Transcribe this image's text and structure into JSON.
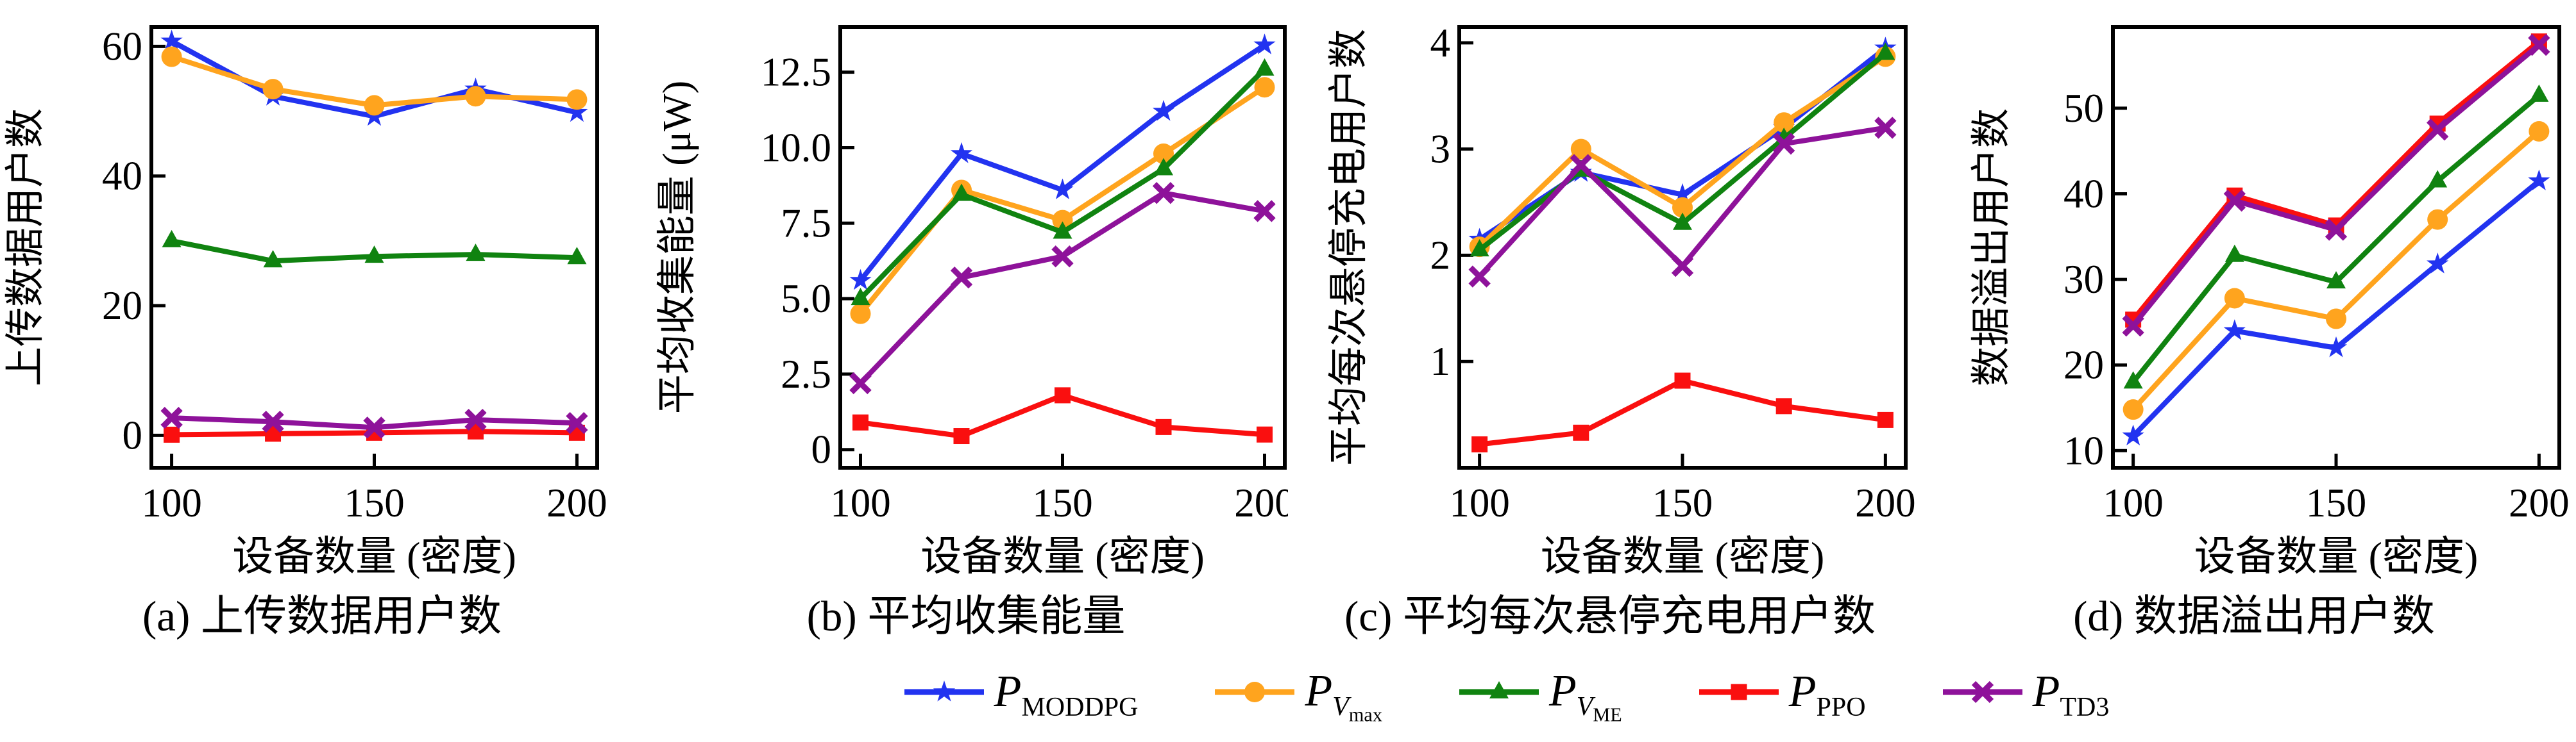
{
  "figure": {
    "x_label": "设备数量 (密度)",
    "x_ticks": [
      {
        "v": 100,
        "label": "100"
      },
      {
        "v": 150,
        "label": "150"
      },
      {
        "v": 200,
        "label": "200"
      }
    ],
    "x_range": [
      95,
      205
    ],
    "background": "#ffffff",
    "axis_color": "#000000",
    "legend": [
      {
        "name": "P_MODDPG",
        "color": "#2233f0",
        "marker": "star",
        "p": "P",
        "sub": "MODDPG"
      },
      {
        "name": "P_Vmax",
        "color": "#ffa41e",
        "marker": "circle",
        "p": "P",
        "sub": "V",
        "subsub": "max"
      },
      {
        "name": "P_VME",
        "color": "#108310",
        "marker": "triangle",
        "p": "P",
        "sub": "V",
        "subsub": "ME"
      },
      {
        "name": "P_PPO",
        "color": "#fa0f0f",
        "marker": "square",
        "p": "P",
        "sub": "PPO"
      },
      {
        "name": "P_TD3",
        "color": "#8e129a",
        "marker": "x",
        "p": "P",
        "sub": "TD3"
      }
    ]
  },
  "chart_data": [
    {
      "id": "a",
      "type": "line",
      "caption": "(a) 上传数据用户数",
      "ylabel": "上传数据用户数",
      "xlabel": "设备数量 (密度)",
      "x": [
        100,
        125,
        150,
        175,
        200
      ],
      "ylim": [
        -5,
        63
      ],
      "y_ticks": [
        {
          "v": 0,
          "label": "0"
        },
        {
          "v": 20,
          "label": "20"
        },
        {
          "v": 40,
          "label": "40"
        },
        {
          "v": 60,
          "label": "60"
        }
      ],
      "series": [
        {
          "name": "P_MODDPG",
          "values": [
            60.8,
            52.3,
            49.2,
            53.4,
            49.8
          ]
        },
        {
          "name": "P_Vmax",
          "values": [
            58.4,
            53.4,
            50.9,
            52.3,
            51.8
          ]
        },
        {
          "name": "P_VME",
          "values": [
            30.0,
            26.9,
            27.6,
            27.9,
            27.4
          ]
        },
        {
          "name": "P_PPO",
          "values": [
            0.1,
            0.25,
            0.4,
            0.6,
            0.4
          ]
        },
        {
          "name": "P_TD3",
          "values": [
            2.7,
            2.1,
            1.2,
            2.4,
            1.9
          ]
        }
      ]
    },
    {
      "id": "b",
      "type": "line",
      "caption": "(b) 平均收集能量",
      "ylabel": "平均收集能量 (μW)",
      "xlabel": "设备数量 (密度)",
      "x": [
        100,
        125,
        150,
        175,
        200
      ],
      "ylim": [
        -0.6,
        14.0
      ],
      "y_ticks": [
        {
          "v": 0,
          "label": "0"
        },
        {
          "v": 2.5,
          "label": "2.5"
        },
        {
          "v": 5,
          "label": "5.0"
        },
        {
          "v": 7.5,
          "label": "7.5"
        },
        {
          "v": 10,
          "label": "10.0"
        },
        {
          "v": 12.5,
          "label": "12.5"
        }
      ],
      "series": [
        {
          "name": "P_MODDPG",
          "values": [
            5.6,
            9.8,
            8.6,
            11.2,
            13.4
          ]
        },
        {
          "name": "P_Vmax",
          "values": [
            4.5,
            8.6,
            7.6,
            9.8,
            12.0
          ]
        },
        {
          "name": "P_VME",
          "values": [
            5.0,
            8.45,
            7.2,
            9.3,
            12.6
          ]
        },
        {
          "name": "P_PPO",
          "values": [
            0.9,
            0.45,
            1.8,
            0.75,
            0.5
          ]
        },
        {
          "name": "P_TD3",
          "values": [
            2.2,
            5.7,
            6.4,
            8.5,
            7.9
          ]
        }
      ]
    },
    {
      "id": "c",
      "type": "line",
      "caption": "(c) 平均每次悬停充电用户数",
      "ylabel": "平均每次悬停充电用户数",
      "xlabel": "设备数量 (密度)",
      "x": [
        100,
        125,
        150,
        175,
        200
      ],
      "ylim": [
        0,
        4.15
      ],
      "y_ticks": [
        {
          "v": 1,
          "label": "1"
        },
        {
          "v": 2,
          "label": "2"
        },
        {
          "v": 3,
          "label": "3"
        },
        {
          "v": 4,
          "label": "4"
        }
      ],
      "series": [
        {
          "name": "P_MODDPG",
          "values": [
            2.15,
            2.78,
            2.57,
            3.2,
            3.95
          ]
        },
        {
          "name": "P_Vmax",
          "values": [
            2.08,
            3.0,
            2.45,
            3.25,
            3.87
          ]
        },
        {
          "name": "P_VME",
          "values": [
            2.05,
            2.8,
            2.3,
            3.1,
            3.9
          ]
        },
        {
          "name": "P_PPO",
          "values": [
            0.22,
            0.33,
            0.82,
            0.58,
            0.45
          ]
        },
        {
          "name": "P_TD3",
          "values": [
            1.8,
            2.85,
            1.9,
            3.05,
            3.2
          ]
        }
      ]
    },
    {
      "id": "d",
      "type": "line",
      "caption": "(d) 数据溢出用户数",
      "ylabel": "数据溢出用户数",
      "xlabel": "设备数量 (密度)",
      "x": [
        100,
        125,
        150,
        175,
        200
      ],
      "ylim": [
        8,
        59.5
      ],
      "y_ticks": [
        {
          "v": 10,
          "label": "10"
        },
        {
          "v": 20,
          "label": "20"
        },
        {
          "v": 30,
          "label": "30"
        },
        {
          "v": 40,
          "label": "40"
        },
        {
          "v": 50,
          "label": "50"
        }
      ],
      "series": [
        {
          "name": "P_MODDPG",
          "values": [
            11.7,
            24.0,
            22.0,
            31.8,
            41.5
          ]
        },
        {
          "name": "P_Vmax",
          "values": [
            14.8,
            27.8,
            25.4,
            37.0,
            47.3
          ]
        },
        {
          "name": "P_VME",
          "values": [
            18.0,
            32.8,
            29.7,
            41.5,
            51.5
          ]
        },
        {
          "name": "P_PPO",
          "values": [
            25.3,
            39.8,
            36.3,
            48.2,
            57.8
          ]
        },
        {
          "name": "P_TD3",
          "values": [
            24.6,
            39.2,
            35.8,
            47.5,
            57.4
          ]
        }
      ]
    }
  ]
}
